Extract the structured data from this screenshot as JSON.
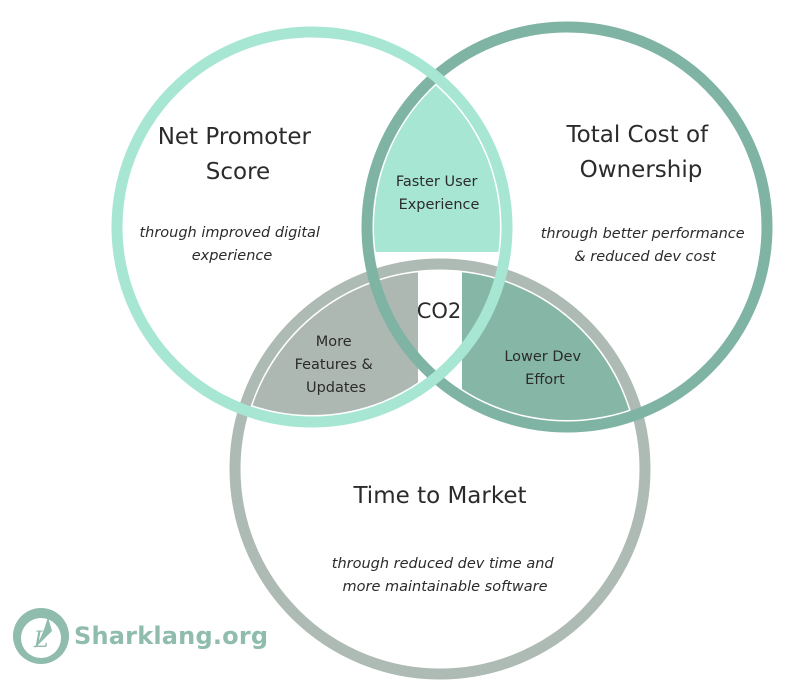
{
  "diagram": {
    "circles": {
      "nps": {
        "title_lines": [
          "Net Promoter",
          "Score"
        ],
        "subtitle_lines": [
          "through improved digital",
          "experience"
        ],
        "color": "#a8e6d4"
      },
      "tco": {
        "title_lines": [
          "Total Cost of",
          "Ownership"
        ],
        "subtitle_lines": [
          "through better performance",
          "& reduced dev cost"
        ],
        "color": "#7fb3a3"
      },
      "ttm": {
        "title_lines": [
          "Time to Market"
        ],
        "subtitle_lines": [
          "through reduced dev time and",
          "more maintainable software"
        ],
        "color": "#aebab4"
      }
    },
    "overlaps": {
      "nps_tco": {
        "label_lines": [
          "Faster User",
          "Experience"
        ],
        "color": "#a8e6d4"
      },
      "nps_ttm": {
        "label_lines": [
          "More",
          "Features &",
          "Updates"
        ],
        "color": "#aeb8b2"
      },
      "tco_ttm": {
        "label_lines": [
          "Lower Dev",
          "Effort"
        ],
        "color": "#86b7a6"
      }
    },
    "center": {
      "label": "CO2"
    }
  },
  "logo": {
    "text": "Sharklang.org",
    "glyph": "L",
    "color": "#8fbcad"
  }
}
